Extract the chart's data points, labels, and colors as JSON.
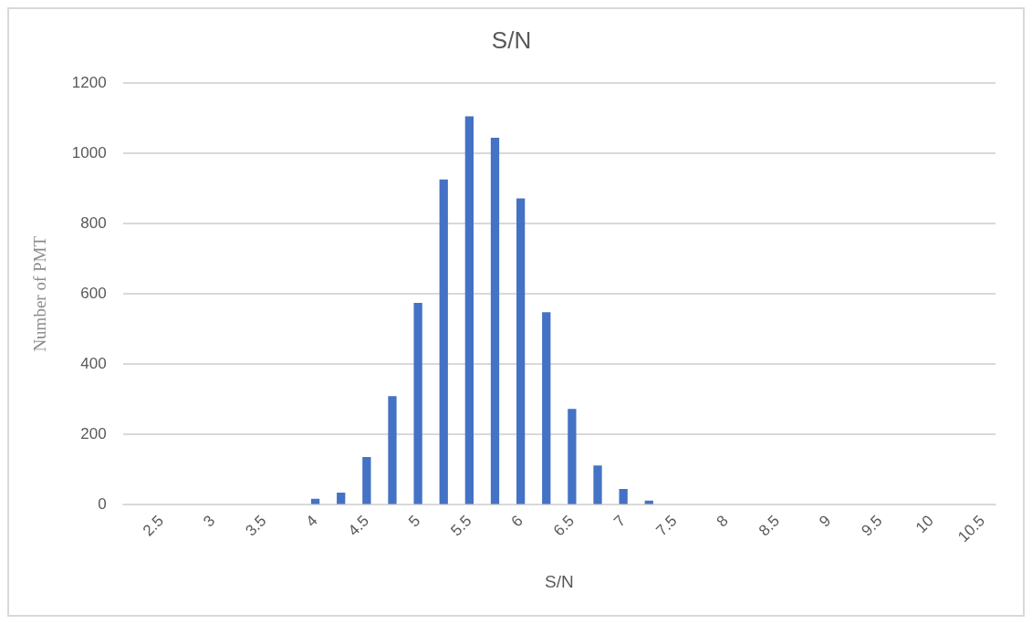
{
  "chart_data": {
    "type": "bar",
    "title": "S/N",
    "xlabel": "S/N",
    "ylabel": "Number of PMT",
    "categories": [
      null,
      "2.5",
      null,
      "3",
      null,
      "3.5",
      null,
      "4",
      null,
      "4.5",
      null,
      "5",
      null,
      "5.5",
      null,
      "6",
      null,
      "6.5",
      null,
      "7",
      null,
      "7.5",
      null,
      "8",
      null,
      "8.5",
      null,
      "9",
      null,
      "9.5",
      null,
      "10",
      null,
      "10.5"
    ],
    "values": [
      0,
      0,
      0,
      0,
      0,
      0,
      0,
      17,
      35,
      136,
      309,
      575,
      926,
      1106,
      1045,
      872,
      548,
      273,
      112,
      45,
      12,
      0,
      0,
      0,
      0,
      0,
      0,
      0,
      0,
      0,
      0,
      0,
      0,
      0
    ],
    "color": "#4472c4",
    "ylim": [
      0,
      1200
    ],
    "yticks": [
      0,
      200,
      400,
      600,
      800,
      1000,
      1200
    ],
    "grid": "y",
    "legend": false
  }
}
